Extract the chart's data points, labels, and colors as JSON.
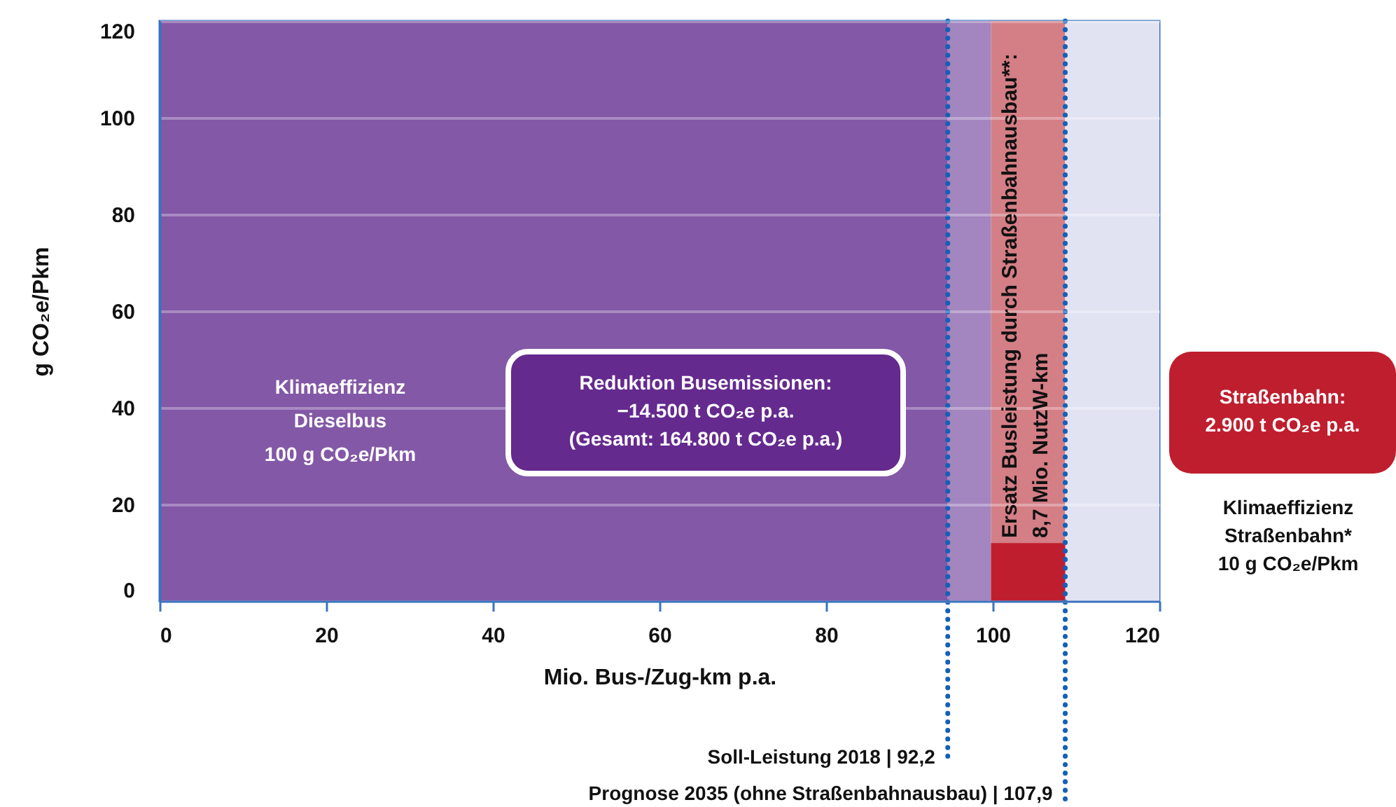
{
  "chart_data": {
    "type": "area",
    "xlabel": "Mio. Bus-/Zug-km p.a.",
    "ylabel": "g CO₂e/Pkm",
    "xlim": [
      0,
      120
    ],
    "xticks": [
      0,
      20,
      40,
      60,
      80,
      100,
      120
    ],
    "ylim": [
      0,
      120
    ],
    "yticks": [
      0,
      20,
      40,
      60,
      80,
      100,
      120
    ],
    "grid": "y",
    "series": [
      {
        "color": "#bf1e2e",
        "x": [
          99.8,
          108.7
        ],
        "values": [
          12,
          12
        ]
      }
    ],
    "bands": [
      {
        "axis": "x",
        "from": 0,
        "to": 94.6,
        "color": "#8358a6"
      },
      {
        "axis": "x",
        "from": 94.6,
        "to": 99.8,
        "color": "#a385bf"
      },
      {
        "axis": "x",
        "from": 99.8,
        "to": 108.7,
        "color": "#d47e86"
      },
      {
        "axis": "x",
        "from": 108.7,
        "to": 120,
        "color": "#e1e3f2"
      }
    ],
    "ref_lines": [
      {
        "axis": "x",
        "value": 94.6,
        "label": "Soll-Leistung 2018 | 92,2",
        "color": "#1560b5",
        "line_style": "dotted"
      },
      {
        "axis": "x",
        "value": 108.7,
        "label": "Prognose 2035 (ohne Straßenbahnausbau) | 107,9",
        "color": "#1560b5",
        "line_style": "dotted"
      }
    ],
    "annotations": [
      "Klimaeffizienz\nDieselbus\n100 g CO₂e/Pkm",
      "Reduktion Busemissionen:\n−14.500 t CO₂e p.a.\n(Gesamt: 164.800 t CO₂e p.a.)",
      "Ersatz Busleistung durch Straßenbahnausbau**:\n8,7 Mio. NutzW-km",
      "Straßenbahn:\n2.900 t CO₂e p.a.",
      "Klimaeffizienz\nStraßenbahn*\n10 g CO₂e/Pkm"
    ]
  }
}
